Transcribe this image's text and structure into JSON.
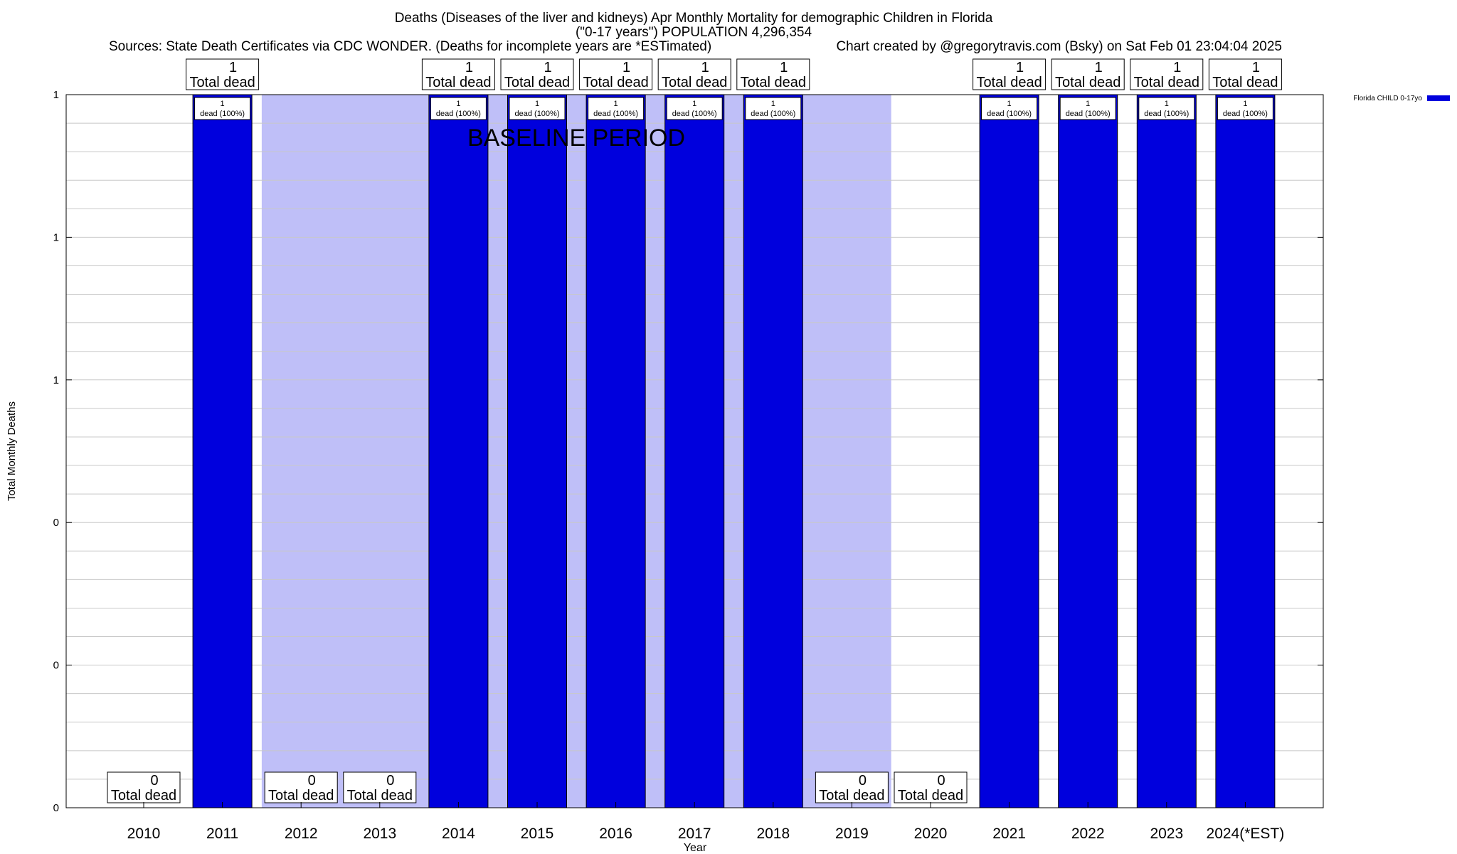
{
  "chart_data": {
    "type": "bar",
    "title_lines": [
      "Deaths (Diseases of the liver and kidneys) Apr Monthly Mortality for demographic Children in Florida",
      "(\"0-17 years\") POPULATION 4,296,354"
    ],
    "subtitle_left": "Sources: State Death Certificates via CDC WONDER. (Deaths for incomplete years are *ESTimated)",
    "subtitle_right": "Chart created by @gregorytravis.com (Bsky) on Sat Feb 01 23:04:04 2025",
    "xlabel": "Year",
    "ylabel": "Total Monthly Deaths",
    "ylim": [
      0,
      1
    ],
    "ytick_labels": [
      "0",
      "0",
      "0",
      "1",
      "1",
      "1"
    ],
    "grid": true,
    "legend": {
      "position": "top-right",
      "label": "Florida CHILD 0-17yo"
    },
    "baseline_label": "BASELINE PERIOD",
    "baseline_years": [
      "2012",
      "2013",
      "2014",
      "2015",
      "2016",
      "2017",
      "2018",
      "2019"
    ],
    "total_label_suffix": "Total dead",
    "categories": [
      "2010",
      "2011",
      "2012",
      "2013",
      "2014",
      "2015",
      "2016",
      "2017",
      "2018",
      "2019",
      "2020",
      "2021",
      "2022",
      "2023",
      "2024(*EST)"
    ],
    "series": [
      {
        "name": "Florida CHILD 0-17yo",
        "color": "#0000dd",
        "values": [
          0,
          1,
          0,
          0,
          1,
          1,
          1,
          1,
          1,
          0,
          0,
          1,
          1,
          1,
          1
        ],
        "bar_labels": [
          "",
          "1\ndead (100%)",
          "",
          "",
          "1\ndead (100%)",
          "1\ndead (100%)",
          "1\ndead (100%)",
          "1\ndead (100%)",
          "1\ndead (100%)",
          "",
          "",
          "1\ndead (100%)",
          "1\ndead (100%)",
          "1\ndead (100%)",
          "1\ndead (100%)"
        ]
      }
    ],
    "colors": {
      "bar": "#0000dd",
      "baseline_shade": "#bfbff8",
      "grid": "#c8c8c8"
    }
  }
}
